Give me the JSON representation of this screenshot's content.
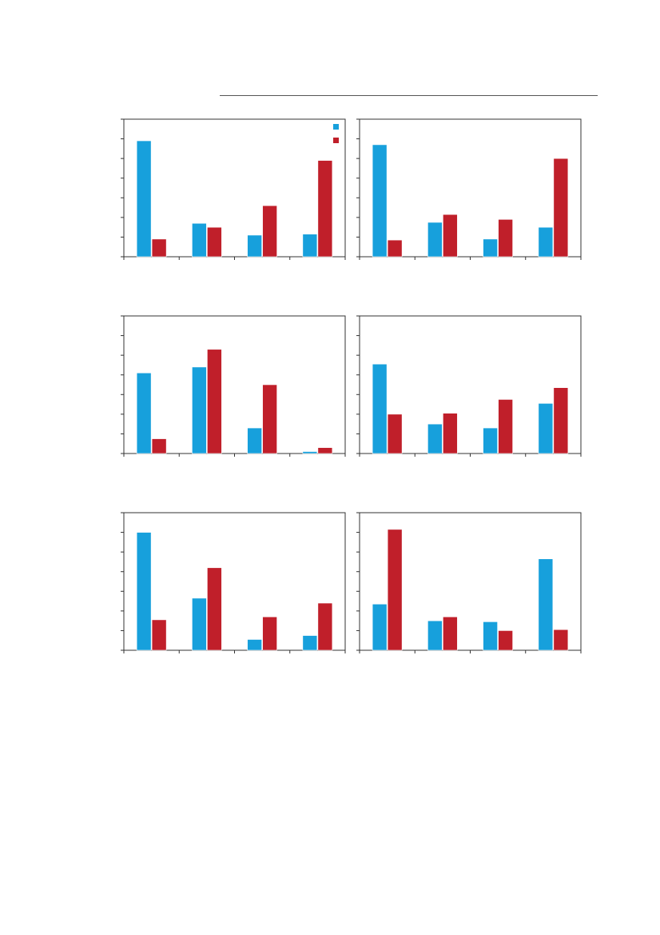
{
  "colors": {
    "series_a": "#17a0dc",
    "series_b": "#c01f2a",
    "axis": "#333333"
  },
  "chart_data": [
    {
      "type": "bar",
      "categories": [
        "",
        "",
        "",
        ""
      ],
      "series": [
        {
          "color": "#17a0dc",
          "values": [
            5.9,
            1.7,
            1.1,
            1.15
          ]
        },
        {
          "color": "#c01f2a",
          "values": [
            0.9,
            1.5,
            2.6,
            4.9
          ]
        }
      ],
      "ylim": [
        0,
        7
      ],
      "legend": "top-right",
      "grid": false
    },
    {
      "type": "bar",
      "categories": [
        "",
        "",
        "",
        ""
      ],
      "series": [
        {
          "color": "#17a0dc",
          "values": [
            5.7,
            1.75,
            0.9,
            1.5
          ]
        },
        {
          "color": "#c01f2a",
          "values": [
            0.85,
            2.15,
            1.9,
            5.0
          ]
        }
      ],
      "ylim": [
        0,
        7
      ],
      "grid": false
    },
    {
      "type": "bar",
      "categories": [
        "",
        "",
        "",
        ""
      ],
      "series": [
        {
          "color": "#17a0dc",
          "values": [
            4.1,
            4.4,
            1.3,
            0.1
          ]
        },
        {
          "color": "#c01f2a",
          "values": [
            0.75,
            5.3,
            3.5,
            0.3
          ]
        }
      ],
      "ylim": [
        0,
        7
      ],
      "grid": false
    },
    {
      "type": "bar",
      "categories": [
        "",
        "",
        "",
        ""
      ],
      "series": [
        {
          "color": "#17a0dc",
          "values": [
            4.55,
            1.5,
            1.3,
            2.55
          ]
        },
        {
          "color": "#c01f2a",
          "values": [
            2.0,
            2.05,
            2.75,
            3.35
          ]
        }
      ],
      "ylim": [
        0,
        7
      ],
      "grid": false
    },
    {
      "type": "bar",
      "categories": [
        "",
        "",
        "",
        ""
      ],
      "series": [
        {
          "color": "#17a0dc",
          "values": [
            6.0,
            2.65,
            0.55,
            0.75
          ]
        },
        {
          "color": "#c01f2a",
          "values": [
            1.55,
            4.2,
            1.7,
            2.4
          ]
        }
      ],
      "ylim": [
        0,
        7
      ],
      "grid": false
    },
    {
      "type": "bar",
      "categories": [
        "",
        "",
        "",
        ""
      ],
      "series": [
        {
          "color": "#17a0dc",
          "values": [
            2.35,
            1.5,
            1.45,
            4.65
          ]
        },
        {
          "color": "#c01f2a",
          "values": [
            6.15,
            1.7,
            1.0,
            1.05
          ]
        }
      ],
      "ylim": [
        0,
        7
      ],
      "grid": false
    }
  ]
}
